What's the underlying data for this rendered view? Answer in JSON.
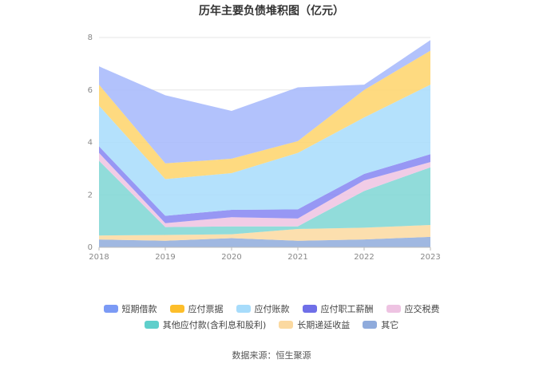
{
  "chart_data": {
    "type": "area",
    "stacked": true,
    "title": "历年主要负债堆积图（亿元）",
    "x": [
      "2018",
      "2019",
      "2020",
      "2021",
      "2022",
      "2023"
    ],
    "ylim": [
      0,
      8
    ],
    "yticks": [
      "0",
      "2",
      "4",
      "6",
      "8"
    ],
    "grid": true,
    "legend_position": "bottom",
    "series": [
      {
        "name": "其它",
        "color": "#8fabdc",
        "values": [
          0.3,
          0.25,
          0.35,
          0.25,
          0.3,
          0.4
        ]
      },
      {
        "name": "长期递延收益",
        "color": "#fbd9a0",
        "values": [
          0.15,
          0.22,
          0.15,
          0.45,
          0.45,
          0.45
        ]
      },
      {
        "name": "其他应付款(含利息和股利)",
        "color": "#7ed6d3",
        "values": [
          2.85,
          0.3,
          0.3,
          0.1,
          1.4,
          2.2
        ]
      },
      {
        "name": "应交税费",
        "color": "#eec3e2",
        "values": [
          0.3,
          0.15,
          0.35,
          0.3,
          0.4,
          0.2
        ]
      },
      {
        "name": "应付职工薪酬",
        "color": "#8585f2",
        "values": [
          0.25,
          0.28,
          0.28,
          0.35,
          0.25,
          0.3
        ]
      },
      {
        "name": "应付账款",
        "color": "#a7dcfb",
        "values": [
          1.55,
          1.4,
          1.4,
          2.15,
          2.15,
          2.65
        ]
      },
      {
        "name": "应付票据",
        "color": "#fed46a",
        "values": [
          0.8,
          0.6,
          0.55,
          0.45,
          1.05,
          1.3
        ]
      },
      {
        "name": "短期借款",
        "color": "#a4b7fb",
        "values": [
          0.7,
          2.6,
          1.82,
          2.05,
          0.2,
          0.4
        ]
      }
    ],
    "legend_order": [
      "短期借款",
      "应付票据",
      "应付账款",
      "应付职工薪酬",
      "应交税费",
      "其他应付款(含利息和股利)",
      "长期递延收益",
      "其它"
    ],
    "legend_colors": {
      "短期借款": "#7b9af5",
      "应付票据": "#fdbe2a",
      "应付账款": "#a7dcfb",
      "应付职工薪酬": "#6f6fe8",
      "应交税费": "#eec3e2",
      "其他应付款(含利息和股利)": "#5fcfcb",
      "长期递延收益": "#fbd9a0",
      "其它": "#8fabdc"
    }
  },
  "footer": {
    "source": "数据来源：恒生聚源"
  }
}
